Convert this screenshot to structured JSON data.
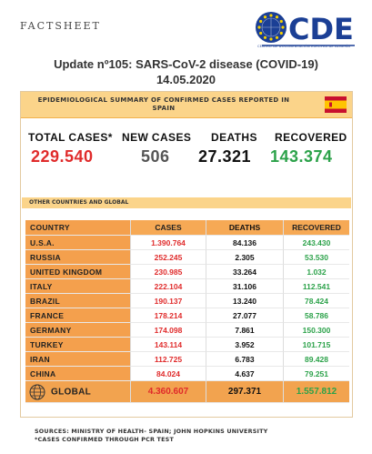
{
  "header": {
    "factsheet": "FACTSHEET",
    "logo_text": "CDE",
    "logo_subtitle": "CENTRO DE DOCUMENTACIÓN EUROPEA DE ALMERÍA"
  },
  "headline": {
    "line1": "Update nº105: SARS-CoV-2 disease (COVID-19)",
    "line2": "14.05.2020"
  },
  "summary": {
    "heading": "EPIDEMIOLOGICAL SUMMARY OF CONFIRMED CASES REPORTED IN SPAIN",
    "flag": "spain-flag",
    "total_cases_label": "TOTAL CASES*",
    "total_cases": "229.540",
    "new_cases_label": "NEW CASES",
    "new_cases": "506",
    "deaths_label": "DEATHS",
    "deaths": "27.321",
    "recovered_label": "RECOVERED",
    "recovered": "143.374"
  },
  "other": {
    "heading": "OTHER COUNTRIES AND GLOBAL",
    "columns": [
      "COUNTRY",
      "CASES",
      "DEATHS",
      "RECOVERED"
    ],
    "rows": [
      {
        "country": "U.S.A.",
        "cases": "1.390.764",
        "deaths": "84.136",
        "recovered": "243.430"
      },
      {
        "country": "RUSSIA",
        "cases": "252.245",
        "deaths": "2.305",
        "recovered": "53.530"
      },
      {
        "country": "UNITED KINGDOM",
        "cases": "230.985",
        "deaths": "33.264",
        "recovered": "1.032"
      },
      {
        "country": "ITALY",
        "cases": "222.104",
        "deaths": "31.106",
        "recovered": "112.541"
      },
      {
        "country": "BRAZIL",
        "cases": "190.137",
        "deaths": "13.240",
        "recovered": "78.424"
      },
      {
        "country": "FRANCE",
        "cases": "178.214",
        "deaths": "27.077",
        "recovered": "58.786"
      },
      {
        "country": "GERMANY",
        "cases": "174.098",
        "deaths": "7.861",
        "recovered": "150.300"
      },
      {
        "country": "TURKEY",
        "cases": "143.114",
        "deaths": "3.952",
        "recovered": "101.715"
      },
      {
        "country": "IRAN",
        "cases": "112.725",
        "deaths": "6.783",
        "recovered": "89.428"
      },
      {
        "country": "CHINA",
        "cases": "84.024",
        "deaths": "4.637",
        "recovered": "79.251"
      }
    ],
    "global": {
      "label": "GLOBAL",
      "cases": "4.360.607",
      "deaths": "297.371",
      "recovered": "1.557.812"
    }
  },
  "sources": {
    "line1": "SOURCES: MINISTRY OF HEALTH- SPAIN; JOHN HOPKINS UNIVERSITY",
    "line2": "*CASES CONFIRMED THROUGH PCR TEST"
  },
  "colors": {
    "cases": "#e02b2b",
    "recovered": "#2ca24a",
    "header_band": "#fbd48a",
    "country_cell": "#f4a04d"
  }
}
